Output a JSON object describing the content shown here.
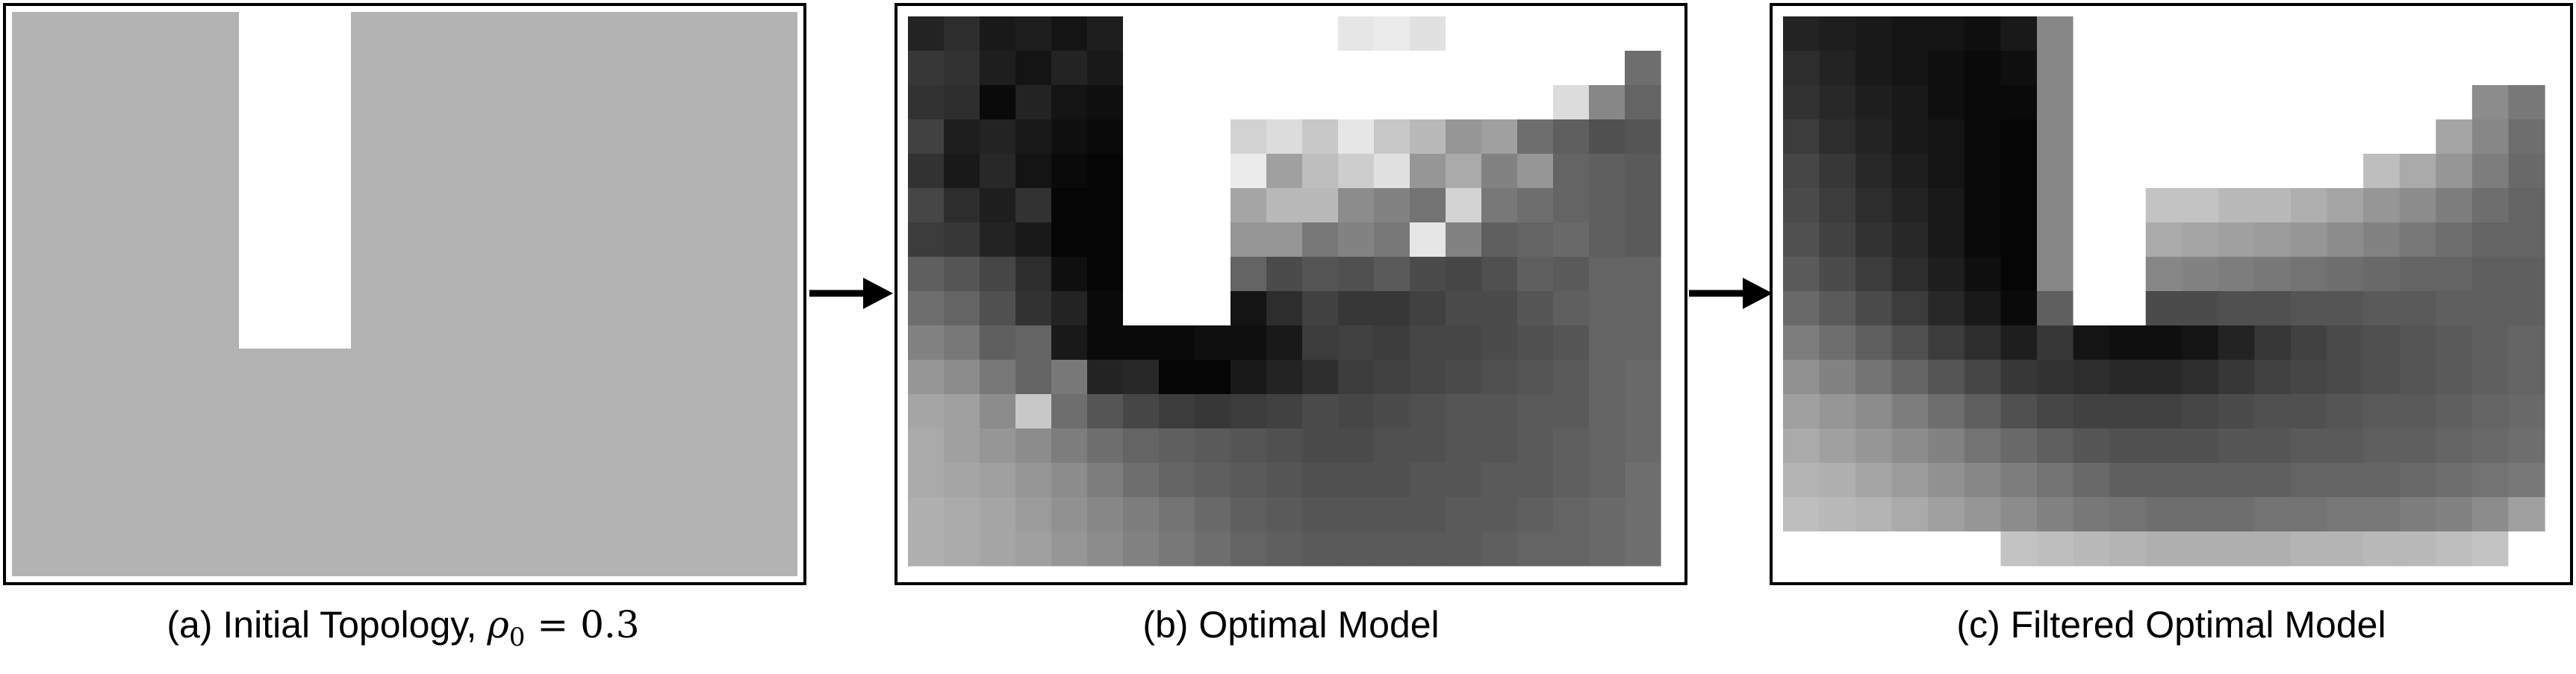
{
  "panels": [
    {
      "id": "initial",
      "caption_prefix": "(a) Initial Topology, ",
      "caption_symbol": "ρ",
      "caption_subscript": "0",
      "caption_equals": " = ",
      "caption_value": "0.3",
      "fill_color": "#b3b3b3"
    },
    {
      "id": "optimal",
      "caption": "(b) Optimal Model"
    },
    {
      "id": "filtered",
      "caption": "(c) Filtered Optimal Model"
    }
  ],
  "optimal_density": {
    "note_cols": 21,
    "rows": [
      [
        35,
        45,
        25,
        30,
        20,
        30,
        0,
        0,
        0,
        0,
        0,
        0,
        230,
        235,
        225,
        0,
        0,
        0,
        0,
        0,
        0
      ],
      [
        55,
        50,
        30,
        20,
        35,
        25,
        0,
        0,
        0,
        0,
        0,
        0,
        0,
        0,
        0,
        0,
        0,
        0,
        0,
        0,
        110
      ],
      [
        50,
        45,
        10,
        35,
        20,
        15,
        0,
        0,
        0,
        0,
        0,
        0,
        0,
        0,
        0,
        0,
        0,
        0,
        220,
        135,
        100
      ],
      [
        65,
        30,
        35,
        25,
        15,
        10,
        0,
        0,
        0,
        210,
        220,
        200,
        230,
        200,
        185,
        150,
        160,
        110,
        95,
        80,
        85
      ],
      [
        50,
        25,
        40,
        20,
        10,
        5,
        0,
        0,
        0,
        235,
        160,
        190,
        205,
        225,
        150,
        170,
        130,
        150,
        100,
        95,
        90
      ],
      [
        70,
        45,
        30,
        50,
        5,
        5,
        0,
        0,
        0,
        165,
        185,
        185,
        140,
        130,
        115,
        210,
        120,
        110,
        100,
        95,
        90
      ],
      [
        60,
        55,
        35,
        25,
        5,
        5,
        0,
        0,
        0,
        150,
        150,
        120,
        130,
        120,
        230,
        130,
        95,
        100,
        105,
        95,
        90
      ],
      [
        95,
        85,
        70,
        45,
        15,
        5,
        0,
        0,
        0,
        100,
        75,
        85,
        80,
        90,
        75,
        70,
        80,
        95,
        90,
        100,
        100
      ],
      [
        110,
        100,
        80,
        50,
        35,
        10,
        0,
        0,
        0,
        20,
        45,
        65,
        55,
        55,
        65,
        75,
        75,
        85,
        95,
        100,
        100
      ],
      [
        130,
        120,
        95,
        100,
        25,
        10,
        10,
        10,
        15,
        15,
        25,
        60,
        65,
        60,
        70,
        70,
        75,
        80,
        85,
        100,
        100
      ],
      [
        150,
        140,
        120,
        100,
        120,
        35,
        40,
        5,
        5,
        25,
        35,
        45,
        60,
        65,
        70,
        75,
        80,
        85,
        90,
        100,
        105
      ],
      [
        165,
        160,
        140,
        200,
        110,
        85,
        70,
        60,
        55,
        60,
        65,
        75,
        70,
        75,
        80,
        85,
        85,
        90,
        90,
        100,
        105
      ],
      [
        170,
        160,
        150,
        140,
        125,
        110,
        100,
        95,
        90,
        85,
        80,
        75,
        75,
        80,
        80,
        85,
        85,
        90,
        95,
        100,
        105
      ],
      [
        170,
        165,
        160,
        150,
        140,
        125,
        110,
        100,
        95,
        90,
        85,
        80,
        80,
        80,
        85,
        85,
        90,
        90,
        95,
        100,
        110
      ],
      [
        175,
        170,
        165,
        155,
        145,
        135,
        125,
        115,
        105,
        95,
        90,
        85,
        85,
        85,
        85,
        90,
        90,
        95,
        100,
        105,
        110
      ],
      [
        175,
        170,
        165,
        160,
        150,
        140,
        130,
        120,
        110,
        100,
        95,
        90,
        90,
        90,
        90,
        90,
        95,
        100,
        100,
        105,
        110
      ]
    ]
  },
  "filtered_density": {
    "rows": [
      [
        35,
        30,
        25,
        20,
        20,
        15,
        25,
        135,
        0,
        0,
        0,
        0,
        0,
        0,
        0,
        0,
        0,
        0,
        0,
        0,
        0
      ],
      [
        45,
        35,
        25,
        20,
        15,
        10,
        15,
        135,
        0,
        0,
        0,
        0,
        0,
        0,
        0,
        0,
        0,
        0,
        0,
        0,
        0
      ],
      [
        50,
        40,
        30,
        25,
        15,
        10,
        10,
        135,
        0,
        0,
        0,
        0,
        0,
        0,
        0,
        0,
        0,
        0,
        0,
        140,
        120
      ],
      [
        60,
        45,
        35,
        25,
        20,
        10,
        5,
        135,
        0,
        0,
        0,
        0,
        0,
        0,
        0,
        0,
        0,
        0,
        165,
        135,
        110
      ],
      [
        70,
        55,
        40,
        30,
        20,
        10,
        5,
        135,
        0,
        0,
        0,
        0,
        0,
        0,
        0,
        0,
        190,
        170,
        150,
        125,
        105
      ],
      [
        75,
        60,
        45,
        35,
        25,
        10,
        5,
        135,
        0,
        0,
        195,
        195,
        185,
        185,
        175,
        165,
        150,
        140,
        125,
        110,
        100
      ],
      [
        80,
        65,
        50,
        40,
        25,
        10,
        5,
        135,
        0,
        0,
        170,
        165,
        160,
        155,
        150,
        140,
        130,
        120,
        110,
        100,
        100
      ],
      [
        90,
        75,
        60,
        45,
        30,
        15,
        5,
        135,
        0,
        0,
        135,
        130,
        125,
        120,
        115,
        110,
        105,
        100,
        100,
        95,
        95
      ],
      [
        105,
        90,
        75,
        60,
        40,
        25,
        10,
        95,
        0,
        0,
        75,
        75,
        80,
        80,
        85,
        85,
        90,
        90,
        95,
        95,
        95
      ],
      [
        125,
        110,
        95,
        80,
        60,
        45,
        30,
        55,
        20,
        15,
        15,
        20,
        35,
        55,
        65,
        75,
        80,
        85,
        90,
        95,
        100
      ],
      [
        145,
        130,
        115,
        100,
        85,
        70,
        55,
        50,
        45,
        40,
        40,
        45,
        55,
        65,
        70,
        75,
        80,
        85,
        90,
        95,
        100
      ],
      [
        160,
        150,
        140,
        125,
        110,
        95,
        80,
        70,
        65,
        65,
        65,
        70,
        75,
        80,
        80,
        85,
        90,
        90,
        95,
        100,
        105
      ],
      [
        170,
        160,
        150,
        140,
        130,
        115,
        105,
        95,
        85,
        80,
        80,
        80,
        85,
        85,
        90,
        90,
        95,
        95,
        100,
        105,
        110
      ],
      [
        180,
        175,
        165,
        155,
        145,
        135,
        125,
        115,
        105,
        95,
        95,
        95,
        95,
        95,
        100,
        100,
        100,
        105,
        110,
        115,
        120
      ],
      [
        190,
        185,
        180,
        170,
        160,
        150,
        140,
        130,
        120,
        115,
        110,
        110,
        110,
        115,
        115,
        120,
        120,
        125,
        130,
        140,
        160
      ],
      [
        0,
        0,
        0,
        0,
        0,
        0,
        195,
        190,
        185,
        180,
        175,
        175,
        175,
        175,
        180,
        180,
        185,
        185,
        190,
        195,
        0
      ]
    ]
  }
}
